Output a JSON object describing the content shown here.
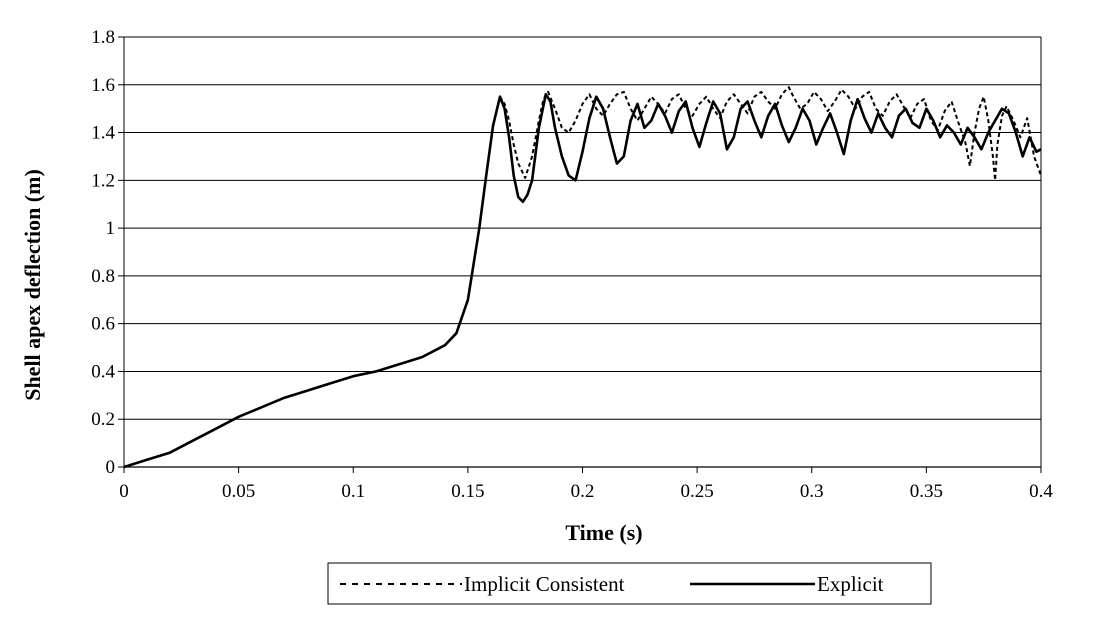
{
  "chart_data": {
    "type": "line",
    "xlabel": "Time (s)",
    "ylabel": "Shell apex deflection (m)",
    "xlim": [
      0,
      0.4
    ],
    "ylim": [
      0,
      1.8
    ],
    "x_ticks": [
      "0",
      "0.05",
      "0.1",
      "0.15",
      "0.2",
      "0.25",
      "0.3",
      "0.35",
      "0.4"
    ],
    "y_ticks": [
      "0",
      "0.2",
      "0.4",
      "0.6",
      "0.8",
      "1",
      "1.2",
      "1.4",
      "1.6",
      "1.8"
    ],
    "grid": "horizontal",
    "legend_position": "bottom",
    "series": [
      {
        "name": "Implicit Consistent",
        "style": "dashed",
        "color": "#000000",
        "x": [
          0,
          0.01,
          0.02,
          0.03,
          0.04,
          0.05,
          0.06,
          0.07,
          0.08,
          0.09,
          0.1,
          0.11,
          0.12,
          0.13,
          0.14,
          0.145,
          0.15,
          0.155,
          0.158,
          0.161,
          0.164,
          0.166,
          0.168,
          0.17,
          0.172,
          0.175,
          0.178,
          0.181,
          0.183,
          0.185,
          0.188,
          0.191,
          0.194,
          0.197,
          0.2,
          0.203,
          0.206,
          0.209,
          0.212,
          0.215,
          0.218,
          0.221,
          0.224,
          0.227,
          0.23,
          0.233,
          0.236,
          0.239,
          0.242,
          0.245,
          0.248,
          0.251,
          0.254,
          0.257,
          0.26,
          0.263,
          0.266,
          0.269,
          0.272,
          0.275,
          0.278,
          0.281,
          0.284,
          0.287,
          0.29,
          0.292,
          0.295,
          0.298,
          0.301,
          0.304,
          0.307,
          0.31,
          0.313,
          0.316,
          0.319,
          0.322,
          0.325,
          0.328,
          0.331,
          0.334,
          0.337,
          0.34,
          0.343,
          0.346,
          0.349,
          0.352,
          0.355,
          0.358,
          0.361,
          0.364,
          0.367,
          0.369,
          0.371,
          0.373,
          0.375,
          0.377,
          0.379,
          0.38,
          0.381,
          0.383,
          0.385,
          0.388,
          0.391,
          0.394,
          0.397,
          0.4
        ],
        "y": [
          0,
          0.03,
          0.06,
          0.11,
          0.16,
          0.21,
          0.25,
          0.29,
          0.32,
          0.35,
          0.38,
          0.4,
          0.43,
          0.46,
          0.51,
          0.56,
          0.7,
          1.0,
          1.22,
          1.43,
          1.55,
          1.52,
          1.45,
          1.35,
          1.27,
          1.21,
          1.3,
          1.45,
          1.54,
          1.57,
          1.5,
          1.42,
          1.4,
          1.45,
          1.52,
          1.56,
          1.5,
          1.47,
          1.52,
          1.56,
          1.57,
          1.5,
          1.45,
          1.5,
          1.55,
          1.52,
          1.48,
          1.54,
          1.56,
          1.5,
          1.47,
          1.52,
          1.55,
          1.5,
          1.46,
          1.53,
          1.56,
          1.52,
          1.48,
          1.55,
          1.57,
          1.53,
          1.5,
          1.56,
          1.59,
          1.55,
          1.5,
          1.52,
          1.57,
          1.54,
          1.49,
          1.53,
          1.58,
          1.55,
          1.5,
          1.55,
          1.57,
          1.5,
          1.47,
          1.53,
          1.56,
          1.51,
          1.46,
          1.52,
          1.54,
          1.45,
          1.41,
          1.49,
          1.53,
          1.44,
          1.36,
          1.26,
          1.4,
          1.5,
          1.55,
          1.45,
          1.3,
          1.2,
          1.35,
          1.47,
          1.51,
          1.45,
          1.38,
          1.46,
          1.3,
          1.22
        ]
      },
      {
        "name": "Explicit",
        "style": "solid",
        "color": "#000000",
        "x": [
          0,
          0.01,
          0.02,
          0.03,
          0.04,
          0.05,
          0.06,
          0.07,
          0.08,
          0.09,
          0.1,
          0.11,
          0.12,
          0.13,
          0.14,
          0.145,
          0.15,
          0.155,
          0.158,
          0.161,
          0.164,
          0.166,
          0.168,
          0.17,
          0.172,
          0.174,
          0.176,
          0.178,
          0.181,
          0.184,
          0.186,
          0.188,
          0.191,
          0.194,
          0.197,
          0.2,
          0.203,
          0.206,
          0.209,
          0.212,
          0.215,
          0.218,
          0.221,
          0.224,
          0.227,
          0.23,
          0.233,
          0.236,
          0.239,
          0.242,
          0.245,
          0.248,
          0.251,
          0.254,
          0.257,
          0.26,
          0.263,
          0.266,
          0.269,
          0.272,
          0.275,
          0.278,
          0.281,
          0.284,
          0.287,
          0.29,
          0.293,
          0.296,
          0.299,
          0.302,
          0.305,
          0.308,
          0.311,
          0.314,
          0.317,
          0.32,
          0.323,
          0.326,
          0.329,
          0.332,
          0.335,
          0.338,
          0.341,
          0.344,
          0.347,
          0.35,
          0.353,
          0.356,
          0.359,
          0.362,
          0.365,
          0.368,
          0.371,
          0.374,
          0.377,
          0.38,
          0.383,
          0.386,
          0.389,
          0.392,
          0.395,
          0.398,
          0.4
        ],
        "y": [
          0,
          0.03,
          0.06,
          0.11,
          0.16,
          0.21,
          0.25,
          0.29,
          0.32,
          0.35,
          0.38,
          0.4,
          0.43,
          0.46,
          0.51,
          0.56,
          0.7,
          1.0,
          1.22,
          1.43,
          1.55,
          1.5,
          1.38,
          1.22,
          1.13,
          1.11,
          1.14,
          1.2,
          1.42,
          1.56,
          1.53,
          1.42,
          1.3,
          1.22,
          1.2,
          1.32,
          1.46,
          1.55,
          1.5,
          1.38,
          1.27,
          1.3,
          1.45,
          1.52,
          1.42,
          1.45,
          1.52,
          1.47,
          1.4,
          1.49,
          1.53,
          1.42,
          1.34,
          1.44,
          1.53,
          1.48,
          1.33,
          1.38,
          1.5,
          1.53,
          1.45,
          1.38,
          1.47,
          1.52,
          1.43,
          1.36,
          1.42,
          1.5,
          1.45,
          1.35,
          1.42,
          1.48,
          1.4,
          1.31,
          1.45,
          1.54,
          1.46,
          1.4,
          1.48,
          1.42,
          1.38,
          1.47,
          1.5,
          1.44,
          1.42,
          1.5,
          1.45,
          1.38,
          1.43,
          1.4,
          1.35,
          1.42,
          1.38,
          1.33,
          1.4,
          1.45,
          1.5,
          1.48,
          1.4,
          1.3,
          1.38,
          1.32,
          1.33
        ]
      }
    ]
  }
}
